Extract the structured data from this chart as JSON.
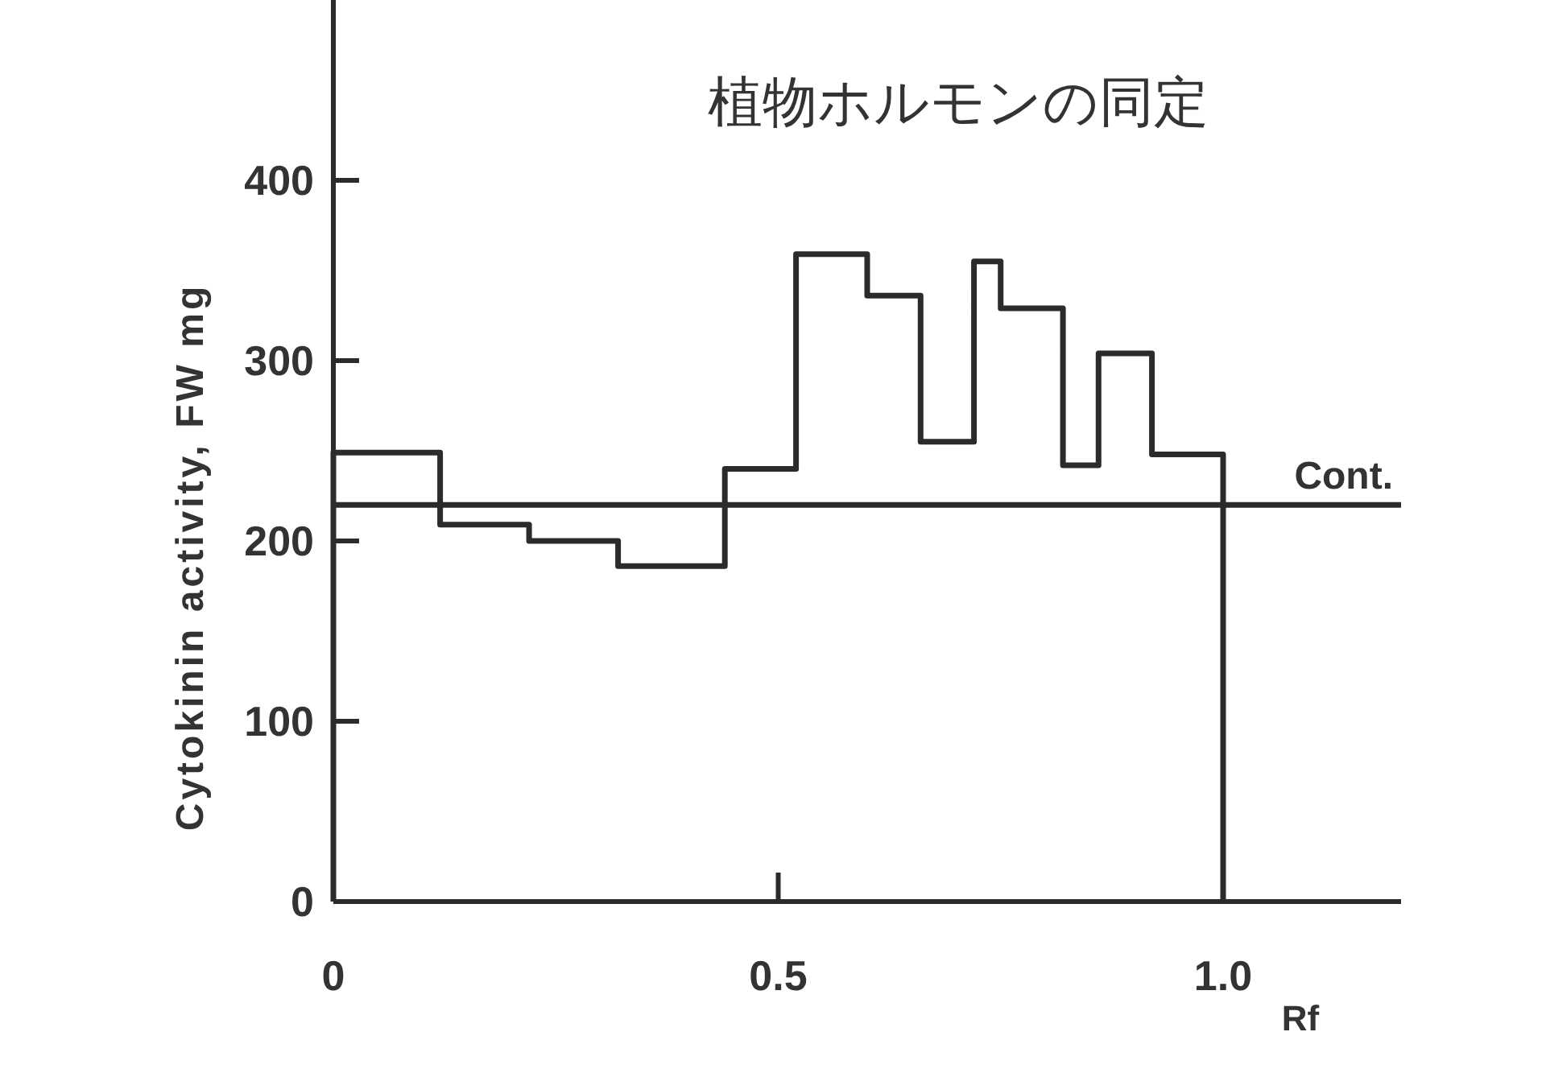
{
  "chart_data": {
    "type": "histogram",
    "title": "植物ホルモンの同定",
    "xlabel": "Rf",
    "ylabel": "Cytokinin activity, FW mg",
    "bins": [
      0,
      0.12,
      0.22,
      0.32,
      0.44,
      0.52,
      0.6,
      0.66,
      0.72,
      0.75,
      0.82,
      0.86,
      0.92,
      1.0
    ],
    "values": [
      249,
      209,
      200,
      186,
      240,
      359,
      336,
      255,
      355,
      329,
      242,
      304,
      248
    ],
    "color": "#2b2b2b",
    "xlim": [
      0,
      1.2
    ],
    "ylim": [
      0,
      500
    ],
    "xticks": [
      0,
      0.5,
      {
        "value": 1.0,
        "label": "1.0"
      }
    ],
    "yticks": [
      0,
      100,
      200,
      300,
      400
    ],
    "ref_lines": [
      {
        "axis": "y",
        "value": 220,
        "label": "Cont.",
        "color": "#2b2b2b"
      }
    ],
    "grid": false
  }
}
